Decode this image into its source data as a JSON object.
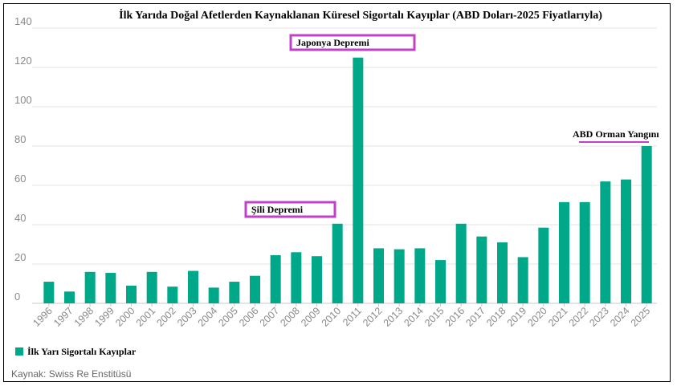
{
  "chart_data": {
    "type": "bar",
    "title": "İlk Yarıda Doğal Afetlerden Kaynaklanan Küresel Sigortalı Kayıplar (ABD Doları-2025 Fiyatlarıyla)",
    "categories": [
      "1996",
      "1997",
      "1998",
      "1999",
      "2000",
      "2001",
      "2002",
      "2003",
      "2004",
      "2005",
      "2006",
      "2007",
      "2008",
      "2009",
      "2010",
      "2011",
      "2012",
      "2013",
      "2014",
      "2015",
      "2016",
      "2017",
      "2018",
      "2019",
      "2020",
      "2021",
      "2022",
      "2023",
      "2024",
      "2025"
    ],
    "series": [
      {
        "name": "İlk Yarı Sigortalı Kayıplar",
        "color": "#00a88a",
        "values": [
          11,
          6,
          16,
          15.5,
          9,
          16,
          8.5,
          16.5,
          8,
          11,
          14,
          24.5,
          26,
          24,
          40.5,
          125,
          28,
          27.5,
          28,
          22,
          40.5,
          34,
          31,
          23.5,
          38.5,
          51.5,
          51.5,
          62,
          63,
          80
        ]
      }
    ],
    "yticks": [
      0,
      20,
      40,
      60,
      80,
      100,
      120,
      140
    ],
    "ylim": [
      0,
      140
    ],
    "xlabel": "",
    "ylabel": "",
    "grid": true,
    "legend": "bottom-left",
    "annotations": [
      {
        "text": "Japonya Depremi",
        "year": "2011",
        "style": "box"
      },
      {
        "text": "Şili Depremi",
        "year": "2010",
        "style": "box"
      },
      {
        "text": "ABD Orman Yangını",
        "year": "2025",
        "style": "underline"
      }
    ],
    "annotation_color": "#c040c8",
    "gridline_color": "#e3e3e3",
    "tick_label_color": "#8a8a8a"
  },
  "source_text": "Kaynak: Swiss Re Enstitüsü"
}
